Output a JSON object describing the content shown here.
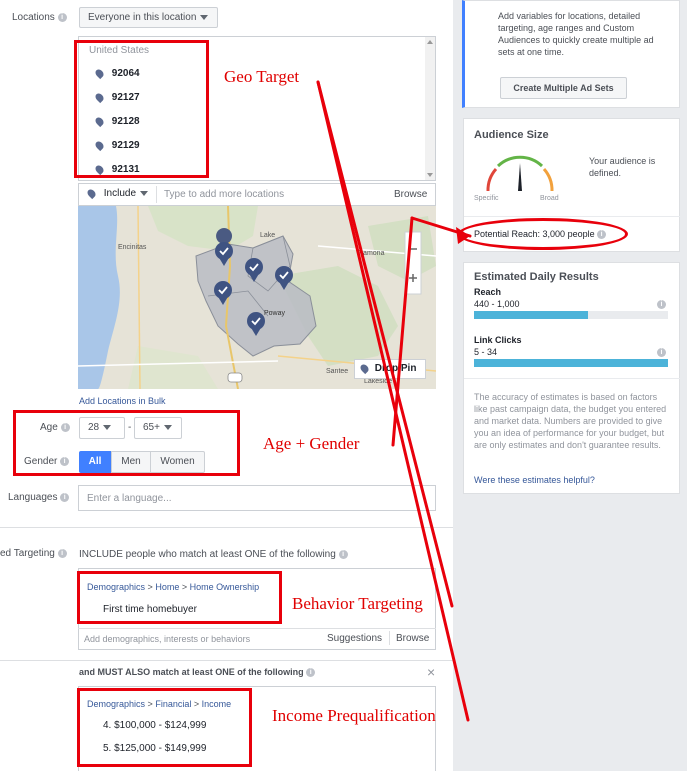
{
  "locations": {
    "label": "Locations",
    "mode_dropdown": "Everyone in this location",
    "country": "United States",
    "zips": [
      "92064",
      "92127",
      "92128",
      "92129",
      "92131"
    ],
    "include_label": "Include",
    "add_placeholder": "Type to add more locations",
    "browse": "Browse",
    "drop_pin": "Drop Pin",
    "bulk_link": "Add Locations in Bulk",
    "map_places": [
      "Encinitas",
      "Lake",
      "Ramona",
      "Santee",
      "Lakeside",
      "Poway"
    ]
  },
  "age": {
    "label": "Age",
    "min": "28",
    "max": "65+",
    "dash": "-"
  },
  "gender": {
    "label": "Gender",
    "options": [
      "All",
      "Men",
      "Women"
    ],
    "selected": "All"
  },
  "languages": {
    "label": "Languages",
    "placeholder": "Enter a language..."
  },
  "detailed_targeting": {
    "label": "ed Targeting",
    "include_text": "INCLUDE people who match at least ONE of the following",
    "include_crumb": [
      "Demographics",
      "Home",
      "Home Ownership"
    ],
    "include_item": "First time homebuyer",
    "add_placeholder": "Add demographics, interests or behaviors",
    "suggestions": "Suggestions",
    "browse": "Browse",
    "must_also_text": "and MUST ALSO match at least ONE of the following",
    "must_crumb": [
      "Demographics",
      "Financial",
      "Income"
    ],
    "must_items": [
      "4. $100,000 - $124,999",
      "5. $125,000 - $149,999"
    ],
    "crumb_sep": ">",
    "close": "×"
  },
  "sidebar": {
    "multi_text": "Add variables for locations, detailed targeting, age ranges and Custom Audiences to quickly create multiple ad sets at one time.",
    "multi_button": "Create Multiple Ad Sets",
    "audience_title": "Audience Size",
    "gauge_left": "Specific",
    "gauge_right": "Broad",
    "audience_status": "Your audience is defined.",
    "potential_reach": "Potential Reach: 3,000 people",
    "daily_title": "Estimated Daily Results",
    "reach_label": "Reach",
    "reach_value": "440 - 1,000",
    "reach_fill": 0.59,
    "clicks_label": "Link Clicks",
    "clicks_value": "5 - 34",
    "clicks_fill": 1.0,
    "disclaimer": "The accuracy of estimates is based on factors like past campaign data, the budget you entered and market data. Numbers are provided to give you an idea of performance for your budget, but are only estimates and don't guarantee results.",
    "helpful_link": "Were these estimates helpful?"
  },
  "annotations": {
    "geo": "Geo Target",
    "age_gender": "Age + Gender",
    "behavior": "Behavior Targeting",
    "income": "Income Prequalification"
  },
  "colors": {
    "annotation_red": "#e8000b",
    "link_blue": "#365899",
    "bar_blue": "#4cb3d9",
    "accent": "#4080ff"
  }
}
